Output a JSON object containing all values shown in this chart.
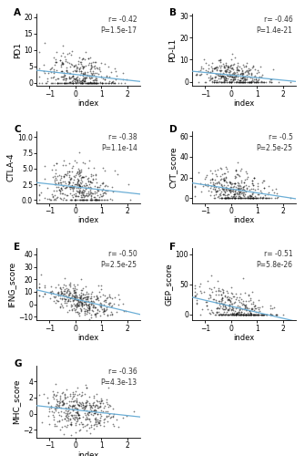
{
  "panels": [
    {
      "label": "A",
      "ylabel": "PD1",
      "r_text": "r= -0.42",
      "p_text": "P=1.5e-17",
      "xlim": [
        -1.5,
        2.5
      ],
      "ylim": [
        -1,
        21
      ],
      "yticks": [
        0,
        5,
        10,
        15,
        20
      ],
      "seed": 101,
      "n_points": 370,
      "slope": -1.2,
      "intercept": 2.0,
      "noise_std": 3.0,
      "x_mean": 0.15,
      "x_std": 0.65,
      "clip_y_min": 0
    },
    {
      "label": "B",
      "ylabel": "PD-L1",
      "r_text": "r= -0.46",
      "p_text": "P=1.4e-21",
      "xlim": [
        -1.5,
        2.5
      ],
      "ylim": [
        -2,
        31
      ],
      "yticks": [
        0,
        10,
        20,
        30
      ],
      "seed": 202,
      "n_points": 370,
      "slope": -1.5,
      "intercept": 2.5,
      "noise_std": 3.5,
      "x_mean": 0.15,
      "x_std": 0.65,
      "clip_y_min": 0
    },
    {
      "label": "C",
      "ylabel": "CTLA-4",
      "r_text": "r= -0.38",
      "p_text": "P=1.1e-14",
      "xlim": [
        -1.5,
        2.5
      ],
      "ylim": [
        -0.5,
        11
      ],
      "yticks": [
        0,
        2.5,
        5.0,
        7.5,
        10.0
      ],
      "seed": 303,
      "n_points": 370,
      "slope": -0.7,
      "intercept": 1.8,
      "noise_std": 1.8,
      "x_mean": 0.15,
      "x_std": 0.65,
      "clip_y_min": 0
    },
    {
      "label": "D",
      "ylabel": "CYT_score",
      "r_text": "r= -0.5",
      "p_text": "P=2.5e-25",
      "xlim": [
        -1.5,
        2.5
      ],
      "ylim": [
        -5,
        65
      ],
      "yticks": [
        0,
        20,
        40,
        60
      ],
      "seed": 404,
      "n_points": 370,
      "slope": -5.0,
      "intercept": 8.0,
      "noise_std": 9.0,
      "x_mean": 0.15,
      "x_std": 0.65,
      "clip_y_min": 0
    },
    {
      "label": "E",
      "ylabel": "IFNG_score",
      "r_text": "r= -0.50",
      "p_text": "P=2.5e-25",
      "xlim": [
        -1.5,
        2.5
      ],
      "ylim": [
        -13,
        45
      ],
      "yticks": [
        -10,
        0,
        10,
        20,
        30,
        40
      ],
      "seed": 505,
      "n_points": 370,
      "slope": -4.5,
      "intercept": 4.0,
      "noise_std": 6.0,
      "x_mean": 0.15,
      "x_std": 0.65,
      "clip_y_min": null
    },
    {
      "label": "F",
      "ylabel": "GEP_score",
      "r_text": "r= -0.51",
      "p_text": "P=5.8e-26",
      "xlim": [
        -1.5,
        2.5
      ],
      "ylim": [
        -10,
        110
      ],
      "yticks": [
        0,
        50,
        100
      ],
      "seed": 606,
      "n_points": 370,
      "slope": -12.0,
      "intercept": 10.0,
      "noise_std": 16.0,
      "x_mean": 0.15,
      "x_std": 0.65,
      "clip_y_min": 0
    },
    {
      "label": "G",
      "ylabel": "MHC_score",
      "r_text": "r= -0.36",
      "p_text": "P=4.3e-13",
      "xlim": [
        -1.5,
        2.5
      ],
      "ylim": [
        -3,
        6
      ],
      "yticks": [
        -2,
        0,
        2,
        4
      ],
      "seed": 707,
      "n_points": 370,
      "slope": -0.5,
      "intercept": 0.5,
      "noise_std": 1.2,
      "x_mean": 0.15,
      "x_std": 0.65,
      "clip_y_min": null
    }
  ],
  "xlabel": "index",
  "line_color": "#6baed6",
  "dot_color": "#111111",
  "dot_size": 1.5,
  "dot_alpha": 0.55,
  "bg_color": "#ffffff",
  "ann_fontsize": 5.5,
  "label_fontsize": 7.5,
  "tick_fontsize": 5.5,
  "ylabel_fontsize": 6.5,
  "xlabel_fontsize": 6.0,
  "xticks": [
    -1,
    0,
    1,
    2
  ]
}
